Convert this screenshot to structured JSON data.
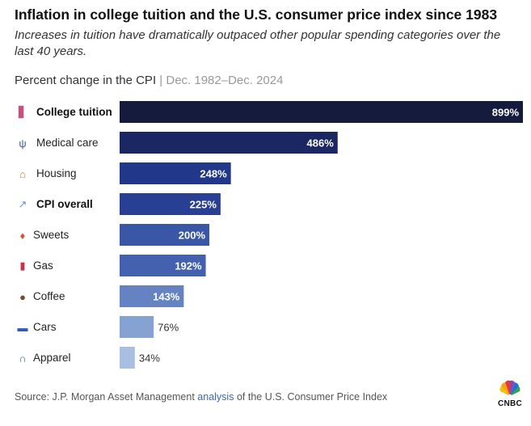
{
  "title": "Inflation in college tuition and the U.S. consumer price index since 1983",
  "subtitle": "Increases in tuition have dramatically outpaced other popular spending categories over the last 40 years.",
  "chart_label": {
    "main": "Percent change in the CPI",
    "separator": "|",
    "range": "Dec. 1982–Dec. 2024"
  },
  "source": {
    "prefix": "Source: J.P. Morgan Asset Management",
    "link": "analysis",
    "suffix": "of the U.S. Consumer Price Index"
  },
  "logo": {
    "text": "CNBC"
  },
  "colors": {
    "College tuition": "#141b3d",
    "Medical care": "#1a2763",
    "Housing": "#21378a",
    "CPI overall": "#283f93",
    "Sweets": "#3a56a6",
    "Gas": "#4461b0",
    "Coffee": "#6583c3",
    "Cars": "#86a2d2",
    "Apparel": "#a9bfe2"
  },
  "chart_data": {
    "type": "bar",
    "orientation": "horizontal",
    "categories": [
      "College tuition",
      "Medical care",
      "Housing",
      "CPI overall",
      "Sweets",
      "Gas",
      "Coffee",
      "Cars",
      "Apparel"
    ],
    "values": [
      899,
      486,
      248,
      225,
      200,
      192,
      143,
      76,
      34
    ],
    "value_labels": [
      "899%",
      "486%",
      "248%",
      "225%",
      "200%",
      "192%",
      "143%",
      "76%",
      "34%"
    ],
    "bold_categories": [
      "College tuition",
      "CPI overall"
    ],
    "icons": [
      "books-icon",
      "stethoscope-icon",
      "house-icon",
      "chart-icon",
      "candy-icon",
      "fuel-pump-icon",
      "coffee-icon",
      "car-icon",
      "jeans-icon"
    ],
    "xlim": [
      0,
      899
    ],
    "grid": false,
    "legend": "none"
  }
}
